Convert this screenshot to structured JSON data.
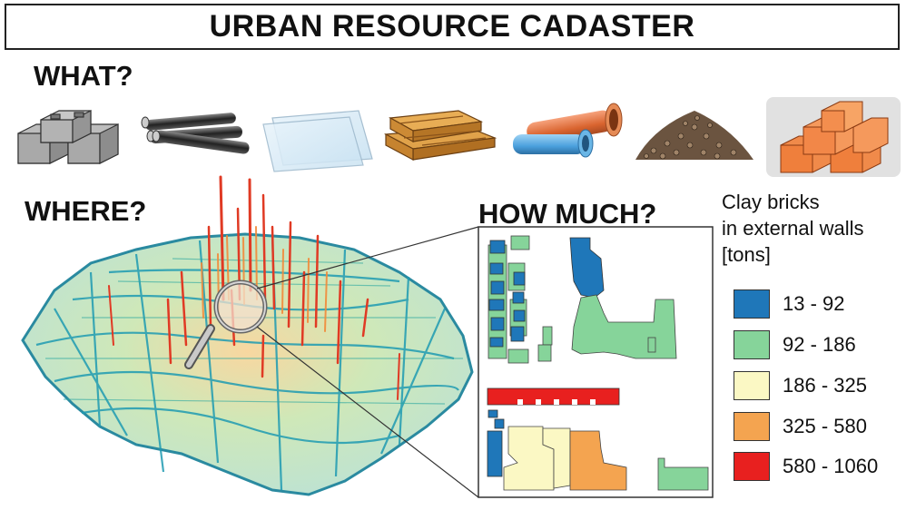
{
  "title": "URBAN RESOURCE CADASTER",
  "sections": {
    "what": "WHAT?",
    "where": "WHERE?",
    "how_much": "HOW MUCH?"
  },
  "materials": [
    {
      "name": "concrete-blocks-icon"
    },
    {
      "name": "steel-pipes-icon"
    },
    {
      "name": "glass-panes-icon"
    },
    {
      "name": "timber-boards-icon"
    },
    {
      "name": "plastic-pipes-icon"
    },
    {
      "name": "gravel-pile-icon"
    },
    {
      "name": "clay-bricks-icon",
      "selected": true
    }
  ],
  "legend": {
    "title_lines": [
      "Clay bricks",
      "in external walls",
      "[tons]"
    ],
    "classes": [
      {
        "label": "13 - 92",
        "color": "#1f77b9"
      },
      {
        "label": "92 - 186",
        "color": "#86d49a"
      },
      {
        "label": "186 - 325",
        "color": "#fbf8c4"
      },
      {
        "label": "325 - 580",
        "color": "#f4a450"
      },
      {
        "label": "580 - 1060",
        "color": "#e8201f"
      }
    ]
  }
}
